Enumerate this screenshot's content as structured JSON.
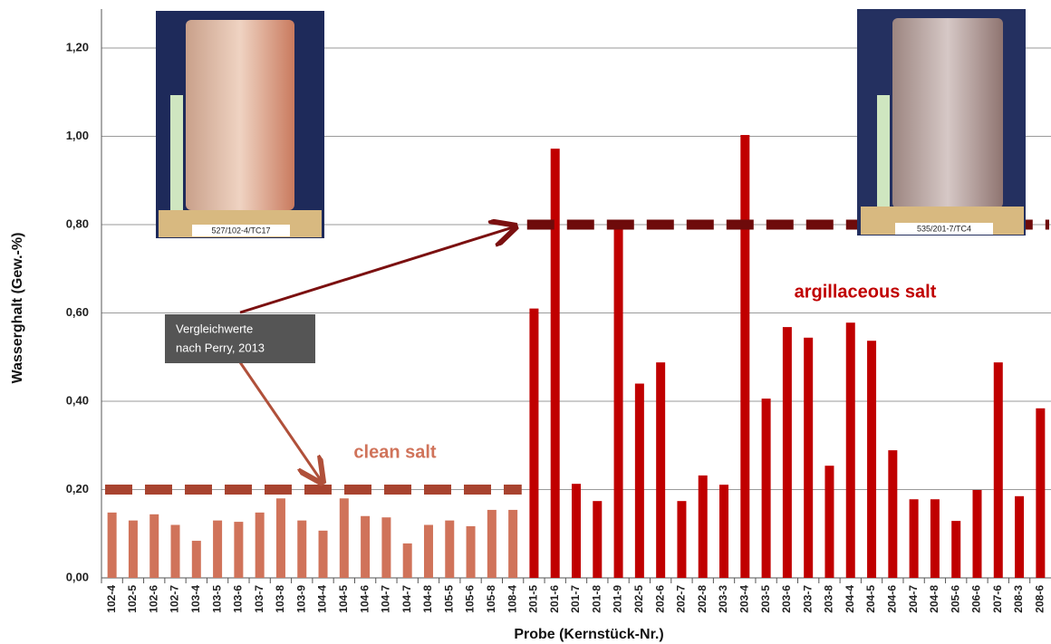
{
  "chart_data": {
    "type": "bar",
    "x_label": "Probe (Kernstück-Nr.)",
    "y_label": "Wasserghalt (Gew.-%)",
    "categories": [
      "102-4",
      "102-5",
      "102-6",
      "102-7",
      "103-4",
      "103-5",
      "103-6",
      "103-7",
      "103-8",
      "103-9",
      "104-4",
      "104-5",
      "104-6",
      "104-7",
      "104-7",
      "104-8",
      "105-5",
      "105-6",
      "105-8",
      "108-4",
      "201-5",
      "201-6",
      "201-7",
      "201-8",
      "201-9",
      "202-5",
      "202-6",
      "202-7",
      "202-8",
      "203-3",
      "203-4",
      "203-5",
      "203-6",
      "203-7",
      "203-8",
      "204-4",
      "204-5",
      "204-6",
      "204-7",
      "204-8",
      "205-6",
      "206-6",
      "207-6",
      "208-3",
      "208-6"
    ],
    "series": [
      {
        "name": "clean salt",
        "color": "#d0735a",
        "reference": 0.2,
        "reference_color": "#a8432f",
        "values": [
          0.148,
          0.13,
          0.144,
          0.12,
          0.084,
          0.13,
          0.127,
          0.148,
          0.18,
          0.13,
          0.107,
          0.18,
          0.14,
          0.137,
          0.078,
          0.12,
          0.13,
          0.117,
          0.154,
          0.154,
          null,
          null,
          null,
          null,
          null,
          null,
          null,
          null,
          null,
          null,
          null,
          null,
          null,
          null,
          null,
          null,
          null,
          null,
          null,
          null,
          null,
          null,
          null,
          null,
          null
        ]
      },
      {
        "name": "argillaceous salt",
        "color": "#c00000",
        "reference": 0.8,
        "reference_color": "#6e0b0b",
        "values": [
          null,
          null,
          null,
          null,
          null,
          null,
          null,
          null,
          null,
          null,
          null,
          null,
          null,
          null,
          null,
          null,
          null,
          null,
          null,
          null,
          0.61,
          0.972,
          0.213,
          0.174,
          0.79,
          0.44,
          0.488,
          0.174,
          0.232,
          0.211,
          1.003,
          0.406,
          0.568,
          0.544,
          0.254,
          0.578,
          0.537,
          0.289,
          0.178,
          0.178,
          0.129,
          0.199,
          0.488,
          0.185,
          0.384
        ]
      }
    ],
    "ylim": [
      0,
      1.2
    ],
    "yticks": [
      {
        "value": 0,
        "label": "0,00"
      },
      {
        "value": 0.2,
        "label": "0,20"
      },
      {
        "value": 0.4,
        "label": "0,40"
      },
      {
        "value": 0.6,
        "label": "0,60"
      },
      {
        "value": 0.8,
        "label": "0,80"
      },
      {
        "value": 1,
        "label": "1,00"
      },
      {
        "value": 1.2,
        "label": "1,20"
      }
    ],
    "grid": true,
    "annotation": [
      "Vergleichwerte",
      "nach Perry, 2013"
    ],
    "photo_labels": [
      "527/102-4/TC17",
      "535/201-7/TC4"
    ]
  }
}
